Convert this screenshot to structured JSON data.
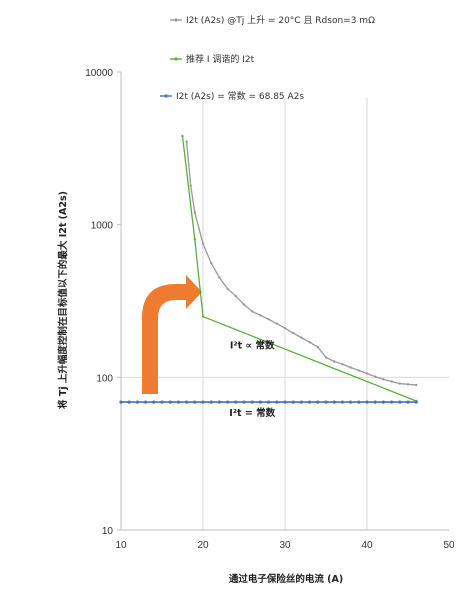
{
  "chart_data": {
    "type": "line",
    "xlabel": "通过电子保险丝的电流 (A)",
    "ylabel": "将 Tj 上升幅度控制在目标值以下的最大 I2t (A2s)",
    "xlim": [
      10,
      50
    ],
    "ylim": [
      10,
      10000
    ],
    "yscale": "log",
    "x_ticks": [
      "10",
      "20",
      "30",
      "40",
      "50"
    ],
    "y_ticks": [
      "10",
      "100",
      "1000",
      "10000"
    ],
    "grid": "vertical gridlines and y=100 line",
    "legend_position": "top",
    "colors": {
      "gray_series": "#999999",
      "green_series": "#5cae3c",
      "blue_series": "#4a6fc2",
      "arrow": "#ee7b30"
    },
    "series": [
      {
        "name": "I2t (A2s) @Tj 上升 = 20°C 且 Rdson=3 mΩ",
        "color": "#999999",
        "x": [
          18,
          18.5,
          19,
          20,
          21,
          22,
          23,
          24,
          25,
          26,
          27,
          28,
          29,
          30,
          31,
          32,
          33,
          34,
          35,
          36,
          37,
          38,
          39,
          40,
          41,
          42,
          43,
          44,
          45,
          46
        ],
        "y": [
          3500,
          1800,
          1200,
          750,
          560,
          450,
          380,
          340,
          300,
          270,
          255,
          240,
          225,
          210,
          195,
          182,
          170,
          158,
          135,
          127,
          122,
          116,
          111,
          106,
          101,
          97,
          94,
          91,
          90,
          89
        ]
      },
      {
        "name": "推荐 I 调谐的 I2t",
        "color": "#5cae3c",
        "x": [
          17.5,
          19,
          20,
          46
        ],
        "y": [
          3800,
          800,
          250,
          70
        ]
      },
      {
        "name": "I2t (A2s) = 常数 = 68.85 A2s",
        "color": "#4a6fc2",
        "x": [
          10,
          11,
          12,
          13,
          14,
          15,
          16,
          17,
          18,
          19,
          20,
          21,
          22,
          23,
          24,
          25,
          26,
          27,
          28,
          29,
          30,
          31,
          32,
          33,
          34,
          35,
          36,
          37,
          38,
          39,
          40,
          41,
          42,
          43,
          44,
          45,
          46
        ],
        "y": [
          68.85,
          68.85,
          68.85,
          68.85,
          68.85,
          68.85,
          68.85,
          68.85,
          68.85,
          68.85,
          68.85,
          68.85,
          68.85,
          68.85,
          68.85,
          68.85,
          68.85,
          68.85,
          68.85,
          68.85,
          68.85,
          68.85,
          68.85,
          68.85,
          68.85,
          68.85,
          68.85,
          68.85,
          68.85,
          68.85,
          68.85,
          68.85,
          68.85,
          68.85,
          68.85,
          68.85,
          68.85
        ]
      }
    ],
    "annotations": [
      {
        "text": "I²t ∝ 常数",
        "x": 26,
        "y": 155
      },
      {
        "text": "I²t = 常数",
        "x": 26,
        "y": 56
      }
    ]
  }
}
